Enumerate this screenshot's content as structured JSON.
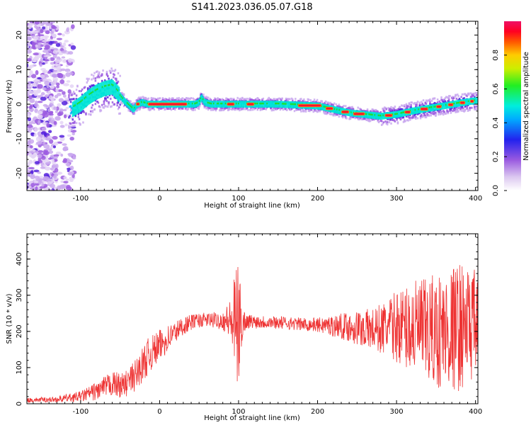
{
  "figure": {
    "title": "S141.2023.036.05.07.G18"
  },
  "colors": {
    "snr_line": "#ee3333",
    "axis": "#000000"
  },
  "chart_data": [
    {
      "type": "heatmap",
      "title": "S141.2023.036.05.07.G18",
      "xlabel": "Height of straight line (km)",
      "ylabel": "Frequency (Hz)",
      "xlim": [
        -168,
        403
      ],
      "ylim": [
        -25,
        24
      ],
      "x_ticks": [
        "-100",
        "0",
        "100",
        "200",
        "300",
        "400"
      ],
      "y_ticks": [
        "-20",
        "-10",
        "0",
        "10",
        "20"
      ],
      "colorbar": {
        "label": "Normalized spectral amplitude",
        "range": [
          0,
          1
        ],
        "ticks": [
          "0.0",
          "0.2",
          "0.4",
          "0.6",
          "0.8"
        ],
        "colormap": "rainbow"
      },
      "ridge": {
        "x": [
          -110,
          -100,
          -90,
          -80,
          -70,
          -60,
          -52,
          -45,
          -38,
          -33,
          -28,
          -22,
          -15,
          0,
          20,
          35,
          45,
          50,
          53,
          57,
          65,
          80,
          100,
          150,
          200,
          220,
          240,
          260,
          280,
          300,
          320,
          340,
          360,
          380,
          400
        ],
        "y": [
          -1.5,
          0,
          2,
          3.5,
          4.5,
          5,
          3,
          1,
          -0.5,
          -1.5,
          0,
          0.5,
          0,
          0,
          0,
          0,
          0,
          0.5,
          2,
          0.5,
          0,
          0,
          0,
          0,
          -0.5,
          -1.5,
          -2.5,
          -3,
          -3.5,
          -3,
          -2,
          -1.2,
          -0.5,
          0.3,
          1
        ]
      }
    },
    {
      "type": "line",
      "xlabel": "Height of straight line (km)",
      "ylabel": "SNR (10 * v/v)",
      "xlim": [
        -168,
        403
      ],
      "ylim": [
        0,
        470
      ],
      "x_ticks": [
        "-100",
        "0",
        "100",
        "200",
        "300",
        "400"
      ],
      "y_ticks": [
        "0",
        "100",
        "200",
        "300",
        "400"
      ],
      "envelope": {
        "x": [
          -168,
          -130,
          -120,
          -100,
          -80,
          -60,
          -45,
          -30,
          -15,
          0,
          15,
          30,
          45,
          60,
          80,
          90,
          95,
          100,
          105,
          110,
          150,
          180,
          200,
          230,
          250,
          270,
          290,
          300,
          320,
          340,
          360,
          380,
          400
        ],
        "mean": [
          10,
          12,
          15,
          20,
          35,
          55,
          50,
          80,
          130,
          160,
          190,
          215,
          230,
          232,
          230,
          230,
          215,
          215,
          225,
          228,
          225,
          220,
          218,
          215,
          210,
          205,
          210,
          215,
          210,
          200,
          200,
          215,
          220
        ],
        "amp": [
          6,
          8,
          10,
          15,
          25,
          35,
          35,
          45,
          50,
          45,
          35,
          25,
          20,
          20,
          25,
          60,
          150,
          170,
          50,
          20,
          18,
          18,
          20,
          35,
          50,
          60,
          80,
          100,
          130,
          150,
          170,
          180,
          150
        ]
      }
    }
  ]
}
